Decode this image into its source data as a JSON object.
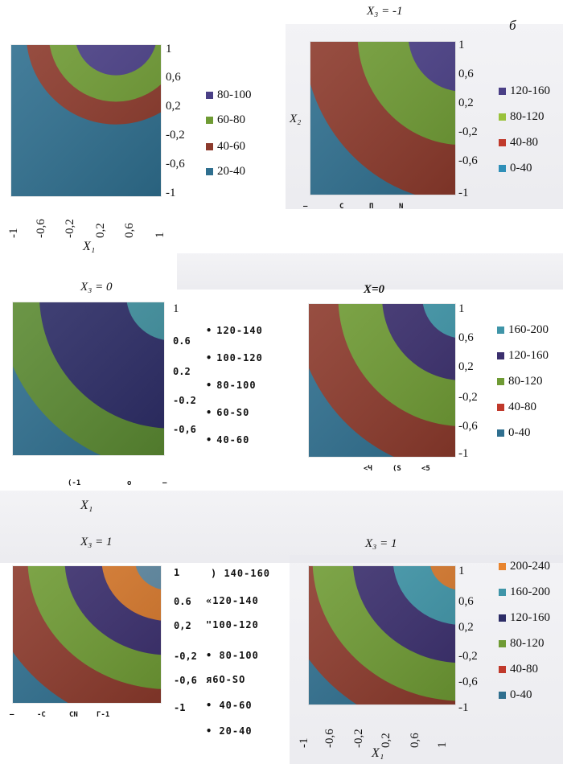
{
  "panel_letter": "б",
  "chart_data": [
    {
      "type": "heatmap",
      "id": "p1",
      "title": "",
      "xlabel": "X₁",
      "ylabel": "",
      "x_ticks": [
        "-1",
        "-0,6",
        "-0,2",
        "0,2",
        "0,6",
        "1"
      ],
      "y_ticks": [
        "1",
        "0,6",
        "0,2",
        "-0,2",
        "-0,6",
        "-1"
      ],
      "xlim": [
        -1,
        1
      ],
      "ylim": [
        -1,
        1
      ],
      "center": [
        0.4,
        1.15
      ],
      "thresholds": [
        0.55,
        0.9,
        1.2
      ],
      "legend": [
        {
          "label": "80-100",
          "color": "#4a3f86"
        },
        {
          "label": "60-80",
          "color": "#6f9b34"
        },
        {
          "label": "40-60",
          "color": "#8c3a2c"
        },
        {
          "label": "20-40",
          "color": "#2f6f8f"
        }
      ]
    },
    {
      "type": "heatmap",
      "id": "p2",
      "title": "X₃ = -1",
      "xlabel": "",
      "ylabel": "X₂",
      "x_ticks": [
        "—",
        "C",
        "П",
        "N"
      ],
      "y_ticks": [
        "1",
        "0,6",
        "0,2",
        "-0,2",
        "-0,6",
        "-1"
      ],
      "xlim": [
        -1,
        1
      ],
      "ylim": [
        -1,
        1
      ],
      "center": [
        1.1,
        1.1
      ],
      "thresholds": [
        0.75,
        1.45,
        2.2
      ],
      "legend": [
        {
          "label": "120-160",
          "color": "#4a3f86"
        },
        {
          "label": "80-120",
          "color": "#6f9b34"
        },
        {
          "label": "40-80",
          "color": "#8c3a2c"
        },
        {
          "label": "0-40",
          "color": "#2f6f8f"
        }
      ]
    },
    {
      "type": "heatmap",
      "id": "p3",
      "title": "X₃ = 0",
      "xlabel": "X₁",
      "ylabel": "",
      "x_ticks": [
        "(-1",
        "o",
        "—"
      ],
      "y_ticks": [
        "1",
        "0.6",
        "0.2",
        "-0.2",
        "-0,6",
        ""
      ],
      "xlim": [
        -1,
        1
      ],
      "ylim": [
        -1,
        1
      ],
      "center": [
        1.1,
        1.1
      ],
      "thresholds": [
        0.6,
        1.15,
        1.75,
        2.3
      ],
      "legend": [
        {
          "label": "120-140",
          "color": "#111"
        },
        {
          "label": "100-120",
          "color": "#111"
        },
        {
          "label": "80-100",
          "color": "#111"
        },
        {
          "label": "60-S0",
          "color": "#111"
        },
        {
          "label": "40-60",
          "color": "#111"
        }
      ]
    },
    {
      "type": "heatmap",
      "id": "p4",
      "title": "X=0",
      "xlabel": "",
      "ylabel": "",
      "x_ticks": [
        "<Ч",
        "(S",
        "<5"
      ],
      "y_ticks": [
        "1",
        "0,6",
        "0,2",
        "-0,2",
        "-0,6",
        "-1"
      ],
      "xlim": [
        -1,
        1
      ],
      "ylim": [
        -1,
        1
      ],
      "center": [
        1.1,
        1.1
      ],
      "thresholds": [
        0.55,
        1.1,
        1.7,
        2.3
      ],
      "legend": [
        {
          "label": "160-200",
          "color": "#3f95a8"
        },
        {
          "label": "120-160",
          "color": "#3b2f6e"
        },
        {
          "label": "80-120",
          "color": "#6f9b34"
        },
        {
          "label": "40-80",
          "color": "#8c3a2c"
        },
        {
          "label": "0-40",
          "color": "#2f6f8f"
        }
      ]
    },
    {
      "type": "heatmap",
      "id": "p5",
      "title": "X₃ = 1",
      "xlabel": "",
      "ylabel": "",
      "x_ticks": [
        "—",
        "-C",
        "CN",
        "Г-1"
      ],
      "y_ticks": [
        "1",
        "0.6",
        "0,2",
        "-0,2",
        "-0,6",
        "-1"
      ],
      "xlim": [
        -1,
        1
      ],
      "ylim": [
        -1,
        1
      ],
      "center": [
        1.1,
        1.1
      ],
      "thresholds": [
        0.45,
        0.9,
        1.4,
        1.9,
        2.5
      ],
      "legend": [
        {
          "label": ") 140-160",
          "color": "#111"
        },
        {
          "label": "«120-140",
          "color": "#111"
        },
        {
          "label": "\"100-120",
          "color": "#111"
        },
        {
          "label": "• 80-100",
          "color": "#111"
        },
        {
          "label": "я6O-SO",
          "color": "#111"
        },
        {
          "label": "• 40-60",
          "color": "#111"
        },
        {
          "label": "• 20-40",
          "color": "#111"
        }
      ]
    },
    {
      "type": "heatmap",
      "id": "p6",
      "title": "X₃ = 1",
      "xlabel": "X₁",
      "ylabel": "",
      "x_ticks": [
        "-1",
        "-0,6",
        "-0,2",
        "0,2",
        "0,6",
        "1"
      ],
      "y_ticks": [
        "1",
        "0,6",
        "0,2",
        "-0,2",
        "-0,6",
        "-1"
      ],
      "xlim": [
        -1,
        1
      ],
      "ylim": [
        -1,
        1
      ],
      "center": [
        1.1,
        1.1
      ],
      "thresholds": [
        0.45,
        0.95,
        1.5,
        2.05,
        2.55
      ],
      "legend": [
        {
          "label": "200-240",
          "color": "#d6782c"
        },
        {
          "label": "160-200",
          "color": "#3f95a8"
        },
        {
          "label": "120-160",
          "color": "#3b2f6e"
        },
        {
          "label": "80-120",
          "color": "#6f9b34"
        },
        {
          "label": "40-80",
          "color": "#8c3a2c"
        },
        {
          "label": "0-40",
          "color": "#2f6f8f"
        }
      ]
    }
  ],
  "band_colors": {
    "p1": [
      "#4a3f86",
      "#6f9b34",
      "#8c3a2c",
      "#2f6f8f"
    ],
    "p2": [
      "#4a3f86",
      "#6f9b34",
      "#8c3a2c",
      "#2f6f8f"
    ],
    "p3": [
      "#3f8f9e",
      "#2c2c66",
      "#2c2c66",
      "#5b8a32",
      "#2f6f8f"
    ],
    "p4": [
      "#3f95a8",
      "#3b2f6e",
      "#6f9b34",
      "#8c3a2c",
      "#2f6f8f"
    ],
    "p5": [
      "#5d87a0",
      "#d6782c",
      "#3b2f6e",
      "#6f9b34",
      "#8c3a2c",
      "#2f6f8f"
    ],
    "p6": [
      "#d6782c",
      "#3f95a8",
      "#3b2f6e",
      "#6f9b34",
      "#8c3a2c",
      "#2f6f8f"
    ]
  }
}
